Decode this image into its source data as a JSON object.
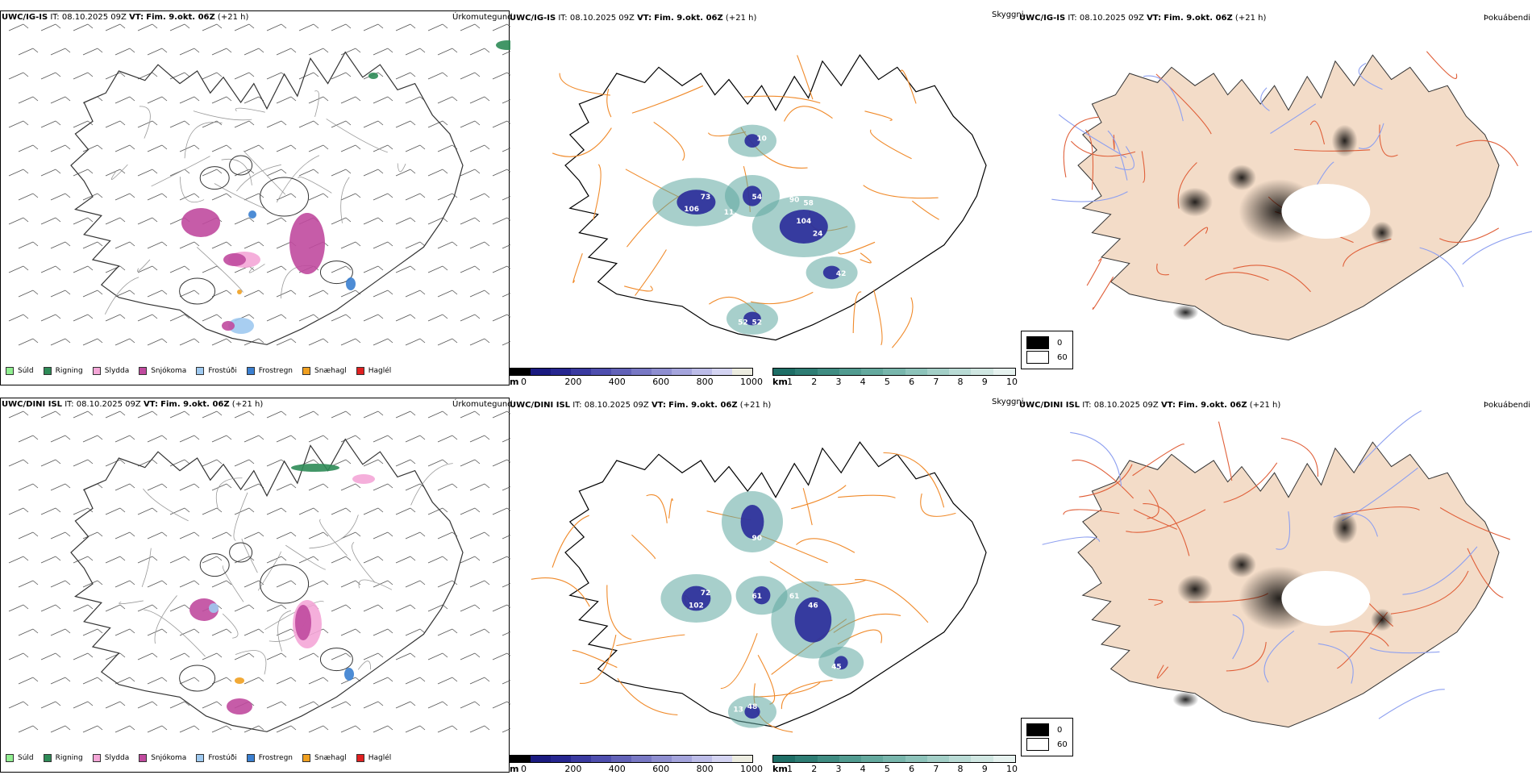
{
  "rows": [
    {
      "model": "UWC/IG-IS",
      "it_label": "IT:",
      "it_value": "08.10.2025 09Z",
      "vt_label": "VT:",
      "vt_value": "Fim. 9.okt. 06Z",
      "lead": "(+21 h)",
      "cloud_labels": [
        "10",
        "54",
        "73",
        "106",
        "11",
        "58",
        "90",
        "104",
        "24",
        "42",
        "52",
        "52"
      ]
    },
    {
      "model": "UWC/DINI ISL",
      "it_label": "IT:",
      "it_value": "08.10.2025 09Z",
      "vt_label": "VT:",
      "vt_value": "Fim. 9.okt. 06Z",
      "lead": "(+21 h)",
      "cloud_labels": [
        "90",
        "72",
        "61",
        "102",
        "61",
        "46",
        "45",
        "48",
        "13"
      ]
    }
  ],
  "titles": {
    "precip": "Úrkomutegund",
    "cloud": "Skyggni",
    "fog": "Þokuábendi"
  },
  "precip_legend": [
    {
      "label": "Súld",
      "color": "#90ee90"
    },
    {
      "label": "Rigning",
      "color": "#2e8b57"
    },
    {
      "label": "Slydda",
      "color": "#f4a6d7"
    },
    {
      "label": "Snjókoma",
      "color": "#c04a9e"
    },
    {
      "label": "Frostúði",
      "color": "#9ec9f0"
    },
    {
      "label": "Frostregn",
      "color": "#3a7fd0"
    },
    {
      "label": "Snæhagl",
      "color": "#f0a020"
    },
    {
      "label": "Haglél",
      "color": "#e02020"
    }
  ],
  "height_bar": {
    "unit": "m",
    "ticks": [
      "0",
      "200",
      "400",
      "600",
      "800",
      "1000"
    ],
    "colors": [
      "#000000",
      "#1a1a80",
      "#262690",
      "#3a3aa0",
      "#4e4eae",
      "#6262b8",
      "#7878c4",
      "#8e8ed0",
      "#a4a4dc",
      "#bcbce8",
      "#d4d4f2",
      "#ecece0"
    ]
  },
  "vis_bar": {
    "unit": "km",
    "ticks": [
      "1",
      "2",
      "3",
      "4",
      "5",
      "6",
      "7",
      "8",
      "9",
      "10"
    ],
    "colors": [
      "#1e6e66",
      "#2e7d74",
      "#3f8c82",
      "#519b90",
      "#64a99e",
      "#78b6ac",
      "#8dc3ba",
      "#a3cfc7",
      "#b9dbd5",
      "#d0e7e2",
      "#e6f2ef"
    ]
  },
  "fog_legend": [
    {
      "label": "0",
      "color": "#000000"
    },
    {
      "label": "60",
      "color": "#ffffff"
    }
  ]
}
